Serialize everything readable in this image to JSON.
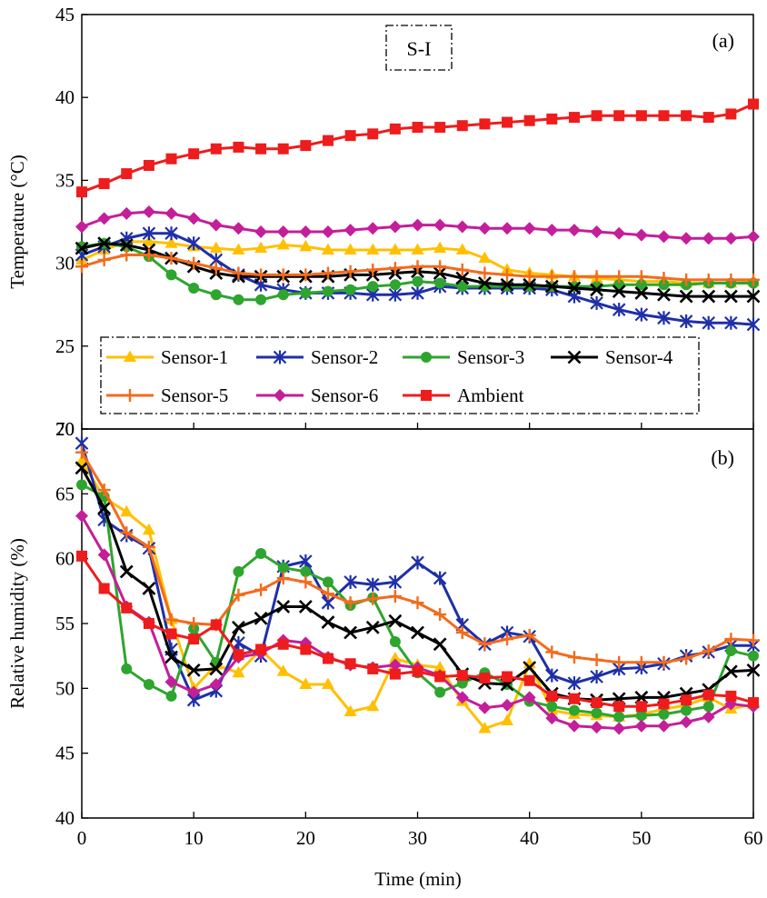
{
  "colors": {
    "Sensor-1": "#FFC000",
    "Sensor-2": "#1F2FA8",
    "Sensor-3": "#2EA52E",
    "Sensor-4": "#000000",
    "Sensor-5": "#F36B1C",
    "Sensor-6": "#C41E9A",
    "Ambient": "#EE1C1C"
  },
  "markers": {
    "Sensor-1": "triangle",
    "Sensor-2": "asterisk",
    "Sensor-3": "circle",
    "Sensor-4": "x",
    "Sensor-5": "plus",
    "Sensor-6": "diamond",
    "Ambient": "square"
  },
  "shared": {
    "xlabel": "Time (min)",
    "xlim": [
      0,
      60
    ],
    "xticks": [
      0,
      10,
      20,
      30,
      40,
      50,
      60
    ]
  },
  "chart_data": [
    {
      "type": "line",
      "panel_label": "(a)",
      "annotation": "S-I",
      "ylabel": "Temperature (°C)",
      "ylim": [
        20,
        45
      ],
      "yticks": [
        20,
        25,
        30,
        35,
        40,
        45
      ],
      "grid": false,
      "legend_position": "bottom",
      "x": [
        0,
        2,
        4,
        6,
        8,
        10,
        12,
        14,
        16,
        18,
        20,
        22,
        24,
        26,
        28,
        30,
        32,
        34,
        36,
        38,
        40,
        42,
        44,
        46,
        48,
        50,
        52,
        54,
        56,
        58,
        60
      ],
      "series": [
        {
          "name": "Sensor-1",
          "values": [
            30.2,
            30.8,
            31.3,
            31.3,
            31.2,
            31.0,
            30.9,
            30.8,
            30.9,
            31.1,
            31.0,
            30.8,
            30.8,
            30.8,
            30.8,
            30.8,
            30.9,
            30.8,
            30.3,
            29.6,
            29.4,
            29.3,
            29.2,
            29.1,
            29.0,
            28.9,
            28.9,
            28.8,
            28.8,
            28.8,
            28.9
          ]
        },
        {
          "name": "Sensor-2",
          "values": [
            30.5,
            31.0,
            31.5,
            31.8,
            31.8,
            31.2,
            30.2,
            29.3,
            28.7,
            28.4,
            28.2,
            28.2,
            28.2,
            28.1,
            28.1,
            28.2,
            28.6,
            28.5,
            28.5,
            28.5,
            28.5,
            28.4,
            28.0,
            27.6,
            27.2,
            26.9,
            26.7,
            26.5,
            26.4,
            26.4,
            26.3
          ]
        },
        {
          "name": "Sensor-3",
          "values": [
            31.0,
            31.2,
            31.0,
            30.4,
            29.3,
            28.5,
            28.1,
            27.8,
            27.8,
            28.1,
            28.2,
            28.3,
            28.4,
            28.6,
            28.7,
            28.9,
            28.8,
            28.6,
            28.6,
            28.6,
            28.6,
            28.6,
            28.6,
            28.6,
            28.7,
            28.7,
            28.7,
            28.7,
            28.8,
            28.8,
            28.8
          ]
        },
        {
          "name": "Sensor-4",
          "values": [
            30.9,
            31.2,
            31.1,
            30.8,
            30.3,
            29.8,
            29.4,
            29.2,
            29.2,
            29.2,
            29.2,
            29.2,
            29.3,
            29.3,
            29.4,
            29.5,
            29.4,
            29.1,
            28.8,
            28.7,
            28.7,
            28.6,
            28.5,
            28.4,
            28.3,
            28.2,
            28.1,
            28.0,
            28.0,
            28.0,
            28.0
          ]
        },
        {
          "name": "Sensor-5",
          "values": [
            29.8,
            30.2,
            30.5,
            30.5,
            30.3,
            30.0,
            29.7,
            29.4,
            29.3,
            29.3,
            29.3,
            29.4,
            29.5,
            29.6,
            29.7,
            29.8,
            29.8,
            29.6,
            29.4,
            29.3,
            29.2,
            29.2,
            29.2,
            29.2,
            29.2,
            29.2,
            29.1,
            29.0,
            29.0,
            29.0,
            29.0
          ]
        },
        {
          "name": "Sensor-6",
          "values": [
            32.2,
            32.7,
            33.0,
            33.1,
            33.0,
            32.7,
            32.3,
            32.1,
            31.9,
            31.9,
            31.9,
            31.9,
            32.0,
            32.1,
            32.2,
            32.3,
            32.3,
            32.2,
            32.1,
            32.1,
            32.1,
            32.0,
            32.0,
            31.9,
            31.8,
            31.7,
            31.6,
            31.5,
            31.5,
            31.5,
            31.6
          ]
        },
        {
          "name": "Ambient",
          "values": [
            34.3,
            34.8,
            35.4,
            35.9,
            36.3,
            36.6,
            36.9,
            37.0,
            36.9,
            36.9,
            37.1,
            37.4,
            37.7,
            37.8,
            38.1,
            38.2,
            38.2,
            38.3,
            38.4,
            38.5,
            38.6,
            38.7,
            38.8,
            38.9,
            38.9,
            38.9,
            38.9,
            38.9,
            38.8,
            39.0,
            39.6
          ]
        }
      ]
    },
    {
      "type": "line",
      "panel_label": "(b)",
      "ylabel": "Relative humidity (%)",
      "ylim": [
        40,
        70
      ],
      "yticks": [
        40,
        45,
        50,
        55,
        60,
        65,
        70
      ],
      "grid": false,
      "x": [
        0,
        2,
        4,
        6,
        8,
        10,
        12,
        14,
        16,
        18,
        20,
        22,
        24,
        26,
        28,
        30,
        32,
        34,
        36,
        38,
        40,
        42,
        44,
        46,
        48,
        50,
        52,
        54,
        56,
        58,
        60
      ],
      "series": [
        {
          "name": "Sensor-1",
          "values": [
            67.5,
            64.7,
            63.6,
            62.2,
            55.3,
            50.0,
            51.8,
            51.2,
            53.0,
            51.3,
            50.3,
            50.3,
            48.2,
            48.6,
            52.3,
            51.8,
            51.6,
            49.0,
            46.9,
            47.5,
            51.9,
            48.3,
            48.0,
            47.9,
            47.8,
            48.0,
            48.4,
            48.7,
            49.3,
            48.4,
            48.8
          ]
        },
        {
          "name": "Sensor-2",
          "values": [
            68.9,
            63.0,
            61.8,
            60.8,
            53.0,
            49.1,
            49.8,
            53.5,
            52.5,
            59.4,
            59.8,
            56.6,
            58.2,
            58.0,
            58.2,
            59.7,
            58.5,
            54.9,
            53.4,
            54.3,
            54.0,
            51.0,
            50.4,
            50.9,
            51.5,
            51.6,
            51.9,
            52.5,
            52.8,
            53.3,
            53.3
          ]
        },
        {
          "name": "Sensor-3",
          "values": [
            65.7,
            64.8,
            51.5,
            50.3,
            49.4,
            54.6,
            52.0,
            59.0,
            60.4,
            59.3,
            59.0,
            58.2,
            56.4,
            57.0,
            53.6,
            51.2,
            49.7,
            50.4,
            51.2,
            50.3,
            49.0,
            48.6,
            48.3,
            48.1,
            47.8,
            47.9,
            48.0,
            48.3,
            48.6,
            52.9,
            52.5
          ]
        },
        {
          "name": "Sensor-4",
          "values": [
            67.0,
            63.9,
            59.0,
            57.7,
            52.4,
            51.4,
            51.5,
            54.7,
            55.4,
            56.3,
            56.3,
            55.1,
            54.3,
            54.7,
            55.2,
            54.3,
            53.4,
            51.1,
            50.4,
            50.3,
            51.6,
            49.6,
            49.2,
            49.1,
            49.2,
            49.3,
            49.3,
            49.6,
            49.9,
            51.3,
            51.4
          ]
        },
        {
          "name": "Sensor-5",
          "values": [
            68.2,
            65.3,
            62.0,
            60.9,
            55.3,
            55.0,
            54.9,
            57.2,
            57.6,
            58.5,
            58.2,
            57.3,
            56.6,
            56.9,
            57.1,
            56.6,
            55.7,
            54.3,
            53.4,
            53.8,
            54.1,
            52.8,
            52.4,
            52.2,
            52.0,
            52.0,
            52.0,
            52.3,
            52.9,
            53.8,
            53.7
          ]
        },
        {
          "name": "Sensor-6",
          "values": [
            63.3,
            60.3,
            56.3,
            55.1,
            50.5,
            49.7,
            50.3,
            52.4,
            52.7,
            53.7,
            53.5,
            52.4,
            51.8,
            51.6,
            51.8,
            51.6,
            51.0,
            49.3,
            48.5,
            48.7,
            49.3,
            47.7,
            47.1,
            47.0,
            46.9,
            47.1,
            47.1,
            47.4,
            47.8,
            48.8,
            48.6
          ]
        },
        {
          "name": "Ambient",
          "values": [
            60.2,
            57.7,
            56.2,
            55.0,
            54.2,
            53.8,
            54.9,
            52.6,
            53.0,
            53.4,
            53.0,
            52.3,
            51.9,
            51.5,
            51.1,
            51.3,
            50.9,
            51.0,
            50.8,
            50.9,
            50.6,
            49.4,
            49.2,
            48.9,
            48.6,
            48.6,
            48.8,
            49.1,
            49.5,
            49.4,
            48.9
          ]
        }
      ]
    }
  ]
}
